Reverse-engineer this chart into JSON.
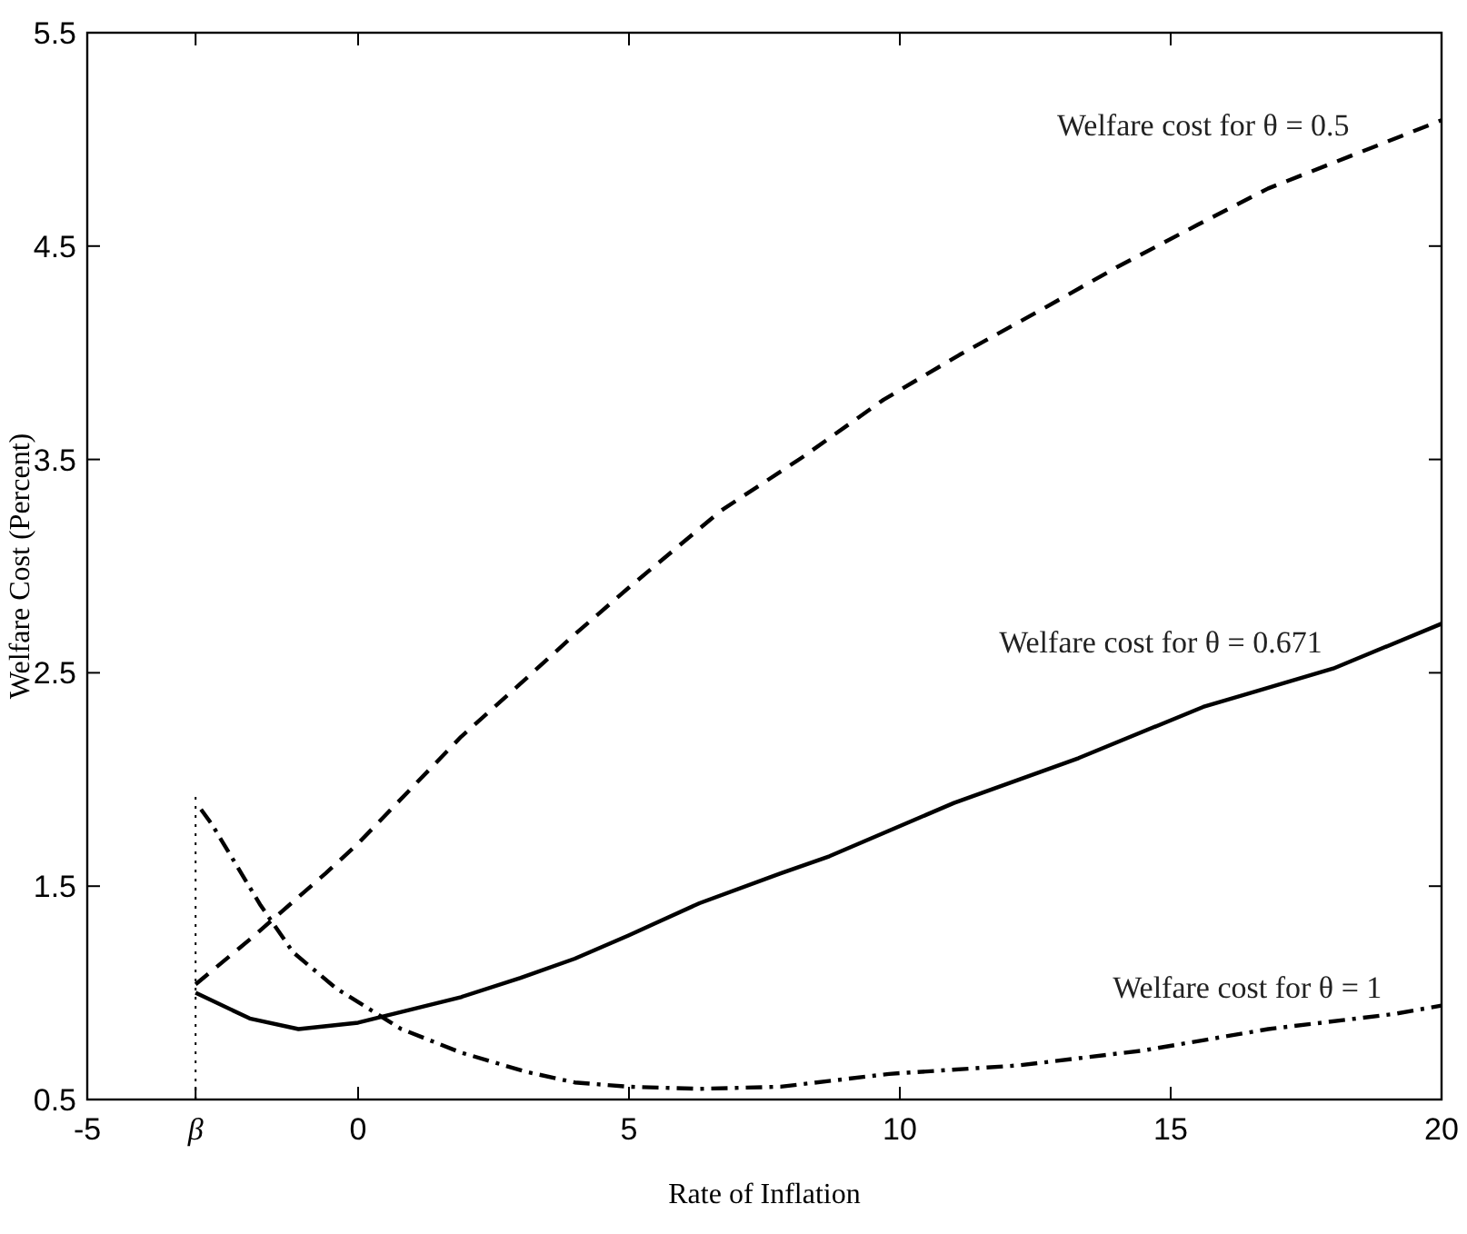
{
  "chart_data": {
    "type": "line",
    "xlabel": "Rate of Inflation",
    "ylabel": "Welfare Cost (Percent)",
    "xlim": [
      -5,
      20
    ],
    "ylim": [
      0.5,
      5.5
    ],
    "xticks": [
      -5,
      {
        "value": -3,
        "label": "β"
      },
      0,
      5,
      10,
      15,
      20
    ],
    "yticks": [
      0.5,
      1.5,
      2.5,
      3.5,
      4.5,
      5.5
    ],
    "grid": false,
    "series": [
      {
        "name": "Welfare cost for θ = 0.5",
        "color": "#000000",
        "line_style": "dashed",
        "x": [
          -3,
          -2,
          -0.6,
          0,
          1.9,
          3,
          4,
          5,
          6.7,
          8.2,
          9.7,
          11.1,
          12.6,
          14,
          15.5,
          16.8,
          18.5,
          20
        ],
        "values": [
          1.04,
          1.25,
          1.56,
          1.7,
          2.2,
          2.45,
          2.68,
          2.9,
          3.26,
          3.51,
          3.78,
          3.99,
          4.2,
          4.4,
          4.6,
          4.77,
          4.94,
          5.09
        ]
      },
      {
        "name": "Welfare cost for θ = 0.671",
        "color": "#000000",
        "line_style": "solid",
        "x": [
          -3,
          -2,
          -1.1,
          0,
          1.9,
          3,
          4,
          5,
          6.3,
          7.8,
          8.7,
          11,
          13.3,
          15.6,
          18,
          20
        ],
        "values": [
          1.0,
          0.88,
          0.83,
          0.86,
          0.98,
          1.07,
          1.16,
          1.27,
          1.42,
          1.56,
          1.64,
          1.89,
          2.1,
          2.34,
          2.52,
          2.73
        ]
      },
      {
        "name": "Welfare cost for θ = 1",
        "color": "#000000",
        "line_style": "dashdot",
        "x": [
          -2.9,
          -2.7,
          -1.8,
          -1.2,
          -0.4,
          0.8,
          1.9,
          3.1,
          4,
          5,
          6.3,
          7.8,
          9.8,
          12.2,
          14.5,
          16.8,
          19.1,
          20
        ],
        "values": [
          1.86,
          1.79,
          1.41,
          1.19,
          1.02,
          0.83,
          0.72,
          0.63,
          0.58,
          0.56,
          0.55,
          0.56,
          0.62,
          0.66,
          0.73,
          0.83,
          0.9,
          0.94
        ]
      },
      {
        "color": "#000000",
        "line_style": "dotted",
        "x": [
          -3,
          -3
        ],
        "values": [
          0.5,
          1.92
        ]
      }
    ]
  }
}
